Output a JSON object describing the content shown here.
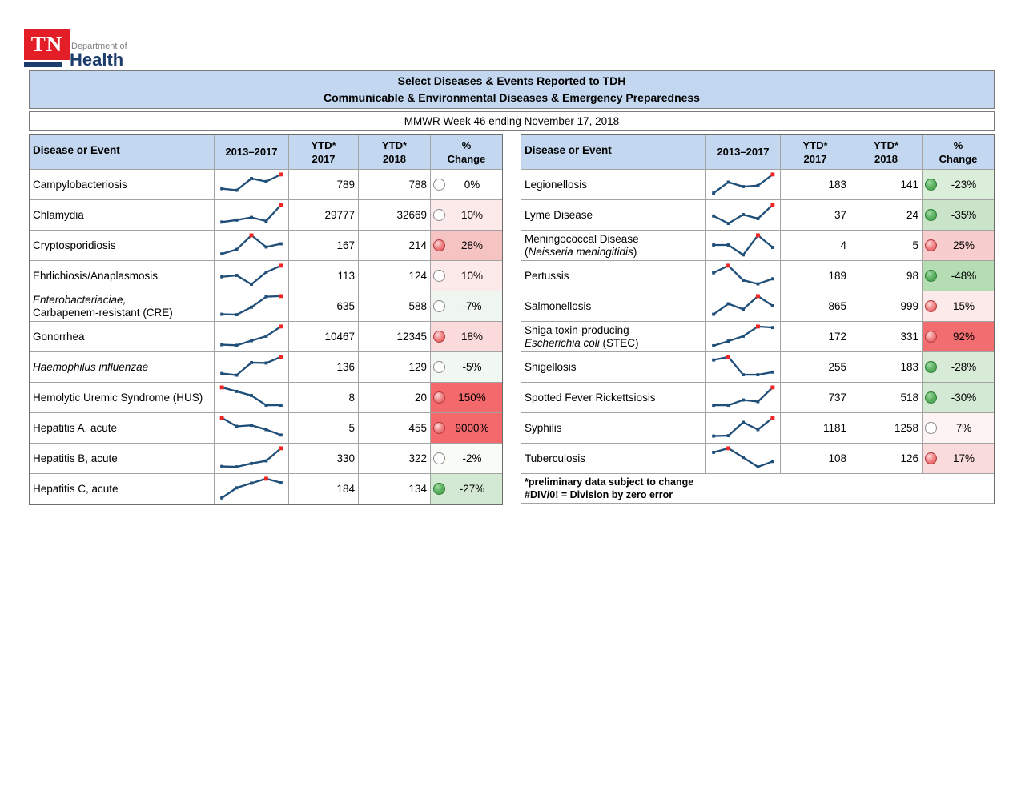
{
  "logo": {
    "tn": "TN",
    "department_of": "Department of",
    "health": "Health",
    "red": "#e41e26",
    "navy": "#1d3e6d",
    "gray": "#7d7f82"
  },
  "title": {
    "line1": "Select Diseases & Events Reported to TDH",
    "line2": "Communicable & Environmental Diseases & Emergency Preparedness",
    "bg": "#c3d8f0"
  },
  "subtitle": "MMWR Week 46 ending November 17, 2018",
  "columns": {
    "disease": "Disease or Event",
    "spark": "2013–2017",
    "ytd2017_l1": "YTD*",
    "ytd2017_l2": "2017",
    "ytd2018_l1": "YTD*",
    "ytd2018_l2": "2018",
    "pct_l1": "%",
    "pct_l2": "Change"
  },
  "sparkline_style": {
    "line_color": "#1f4e79",
    "marker_color": "#1f4e79",
    "high_marker_color": "#ee2724"
  },
  "tables": [
    {
      "id": "left",
      "rows": [
        {
          "name_lines": [
            [
              {
                "t": "Campylobacteriosis",
                "i": 0
              }
            ]
          ],
          "spark": [
            30,
            22,
            80,
            65,
            100
          ],
          "high": 4,
          "ytd2017": "789",
          "ytd2018": "788",
          "pct": "0%",
          "circle": "none",
          "pct_bg": "#ffffff"
        },
        {
          "name_lines": [
            [
              {
                "t": "Chlamydia",
                "i": 0
              }
            ]
          ],
          "spark": [
            15,
            25,
            38,
            20,
            100
          ],
          "high": 4,
          "ytd2017": "29777",
          "ytd2018": "32669",
          "pct": "10%",
          "circle": "none",
          "pct_bg": "#fce9e9"
        },
        {
          "name_lines": [
            [
              {
                "t": "Cryptosporidiosis",
                "i": 0
              }
            ]
          ],
          "spark": [
            8,
            30,
            100,
            42,
            58
          ],
          "high": 2,
          "ytd2017": "167",
          "ytd2018": "214",
          "pct": "28%",
          "circle": "red",
          "pct_bg": "#f6c3c3"
        },
        {
          "name_lines": [
            [
              {
                "t": "Ehrlichiosis/Anaplasmosis",
                "i": 0
              }
            ]
          ],
          "spark": [
            45,
            52,
            8,
            68,
            100
          ],
          "high": 4,
          "ytd2017": "113",
          "ytd2018": "124",
          "pct": "10%",
          "circle": "none",
          "pct_bg": "#fce9e9"
        },
        {
          "name_lines": [
            [
              {
                "t": "Enterobacteriaciae,",
                "i": 1
              }
            ],
            [
              {
                "t": "Carbapenem-resistant (CRE)",
                "i": 0
              }
            ]
          ],
          "spark": [
            10,
            8,
            45,
            97,
            100
          ],
          "high": 4,
          "ytd2017": "635",
          "ytd2018": "588",
          "pct": "-7%",
          "circle": "none",
          "pct_bg": "#eff6ef"
        },
        {
          "name_lines": [
            [
              {
                "t": "Gonorrhea",
                "i": 0
              }
            ]
          ],
          "spark": [
            10,
            7,
            30,
            52,
            100
          ],
          "high": 4,
          "ytd2017": "10467",
          "ytd2018": "12345",
          "pct": "18%",
          "circle": "red",
          "pct_bg": "#fadada"
        },
        {
          "name_lines": [
            [
              {
                "t": "Haemophilus influenzae",
                "i": 1
              }
            ]
          ],
          "spark": [
            18,
            10,
            72,
            70,
            100
          ],
          "high": 4,
          "ytd2017": "136",
          "ytd2018": "129",
          "pct": "-5%",
          "circle": "none",
          "pct_bg": "#f1f7f1"
        },
        {
          "name_lines": [
            [
              {
                "t": "Hemolytic Uremic Syndrome (HUS)",
                "i": 0
              }
            ]
          ],
          "spark": [
            100,
            80,
            60,
            12,
            12
          ],
          "high": 0,
          "ytd2017": "8",
          "ytd2018": "20",
          "pct": "150%",
          "circle": "red",
          "pct_bg": "#f4696b"
        },
        {
          "name_lines": [
            [
              {
                "t": "Hepatitis A, acute",
                "i": 0
              }
            ]
          ],
          "spark": [
            100,
            58,
            63,
            42,
            15
          ],
          "high": 0,
          "ytd2017": "5",
          "ytd2018": "455",
          "pct": "9000%",
          "circle": "red",
          "pct_bg": "#f4696b"
        },
        {
          "name_lines": [
            [
              {
                "t": "Hepatitis B, acute",
                "i": 0
              }
            ]
          ],
          "spark": [
            10,
            8,
            25,
            38,
            100
          ],
          "high": 4,
          "ytd2017": "330",
          "ytd2018": "322",
          "pct": "-2%",
          "circle": "none",
          "pct_bg": "#f9fbf7"
        },
        {
          "name_lines": [
            [
              {
                "t": "Hepatitis C, acute",
                "i": 0
              }
            ]
          ],
          "spark": [
            5,
            55,
            78,
            100,
            80
          ],
          "high": 3,
          "ytd2017": "184",
          "ytd2018": "134",
          "pct": "-27%",
          "circle": "green",
          "pct_bg": "#d4e9d4"
        }
      ],
      "footnotes": []
    },
    {
      "id": "right",
      "rows": [
        {
          "name_lines": [
            [
              {
                "t": "Legionellosis",
                "i": 0
              }
            ]
          ],
          "spark": [
            8,
            62,
            40,
            45,
            100
          ],
          "high": 4,
          "ytd2017": "183",
          "ytd2018": "141",
          "pct": "-23%",
          "circle": "green",
          "pct_bg": "#daeeda"
        },
        {
          "name_lines": [
            [
              {
                "t": "Lyme Disease",
                "i": 0
              }
            ]
          ],
          "spark": [
            45,
            8,
            52,
            32,
            100
          ],
          "high": 4,
          "ytd2017": "37",
          "ytd2018": "24",
          "pct": "-35%",
          "circle": "green",
          "pct_bg": "#c9e4c9"
        },
        {
          "name_lines": [
            [
              {
                "t": "Meningococcal Disease",
                "i": 0
              }
            ],
            [
              {
                "t": "(",
                "i": 0
              },
              {
                "t": "Neisseria meningitidis",
                "i": 1
              },
              {
                "t": ")",
                "i": 0
              }
            ]
          ],
          "spark": [
            52,
            52,
            3,
            100,
            40
          ],
          "high": 3,
          "ytd2017": "4",
          "ytd2018": "5",
          "pct": "25%",
          "circle": "red",
          "pct_bg": "#f8cdcd"
        },
        {
          "name_lines": [
            [
              {
                "t": "Pertussis",
                "i": 0
              }
            ]
          ],
          "spark": [
            65,
            100,
            28,
            10,
            35
          ],
          "high": 1,
          "ytd2017": "189",
          "ytd2018": "98",
          "pct": "-48%",
          "circle": "green",
          "pct_bg": "#b4ddb4"
        },
        {
          "name_lines": [
            [
              {
                "t": "Salmonellosis",
                "i": 0
              }
            ]
          ],
          "spark": [
            10,
            62,
            35,
            100,
            52
          ],
          "high": 3,
          "ytd2017": "865",
          "ytd2018": "999",
          "pct": "15%",
          "circle": "red",
          "pct_bg": "#fce9e9"
        },
        {
          "name_lines": [
            [
              {
                "t": "Shiga toxin-producing",
                "i": 0
              }
            ],
            [
              {
                "t": "Escherichia coli",
                "i": 1
              },
              {
                "t": " (STEC)",
                "i": 0
              }
            ]
          ],
          "spark": [
            5,
            28,
            52,
            100,
            95
          ],
          "high": 3,
          "ytd2017": "172",
          "ytd2018": "331",
          "pct": "92%",
          "circle": "red",
          "pct_bg": "#f26d6f"
        },
        {
          "name_lines": [
            [
              {
                "t": "Shigellosis",
                "i": 0
              }
            ]
          ],
          "spark": [
            85,
            100,
            12,
            12,
            25
          ],
          "high": 1,
          "ytd2017": "255",
          "ytd2018": "183",
          "pct": "-28%",
          "circle": "green",
          "pct_bg": "#d7ebd7"
        },
        {
          "name_lines": [
            [
              {
                "t": "Spotted Fever Rickettsiosis",
                "i": 0
              }
            ]
          ],
          "spark": [
            12,
            12,
            38,
            30,
            100
          ],
          "high": 4,
          "ytd2017": "737",
          "ytd2018": "518",
          "pct": "-30%",
          "circle": "green",
          "pct_bg": "#d4e9d4"
        },
        {
          "name_lines": [
            [
              {
                "t": "Syphilis",
                "i": 0
              }
            ]
          ],
          "spark": [
            10,
            12,
            78,
            42,
            100
          ],
          "high": 4,
          "ytd2017": "1181",
          "ytd2018": "1258",
          "pct": "7%",
          "circle": "none",
          "pct_bg": "#fdf3f3"
        },
        {
          "name_lines": [
            [
              {
                "t": "Tuberculosis",
                "i": 0
              }
            ]
          ],
          "spark": [
            80,
            100,
            55,
            8,
            35
          ],
          "high": 1,
          "ytd2017": "108",
          "ytd2018": "126",
          "pct": "17%",
          "circle": "red",
          "pct_bg": "#fadbdb"
        }
      ],
      "footnotes": [
        "*preliminary data subject to change",
        "#DIV/0! = Division by zero error"
      ]
    }
  ]
}
